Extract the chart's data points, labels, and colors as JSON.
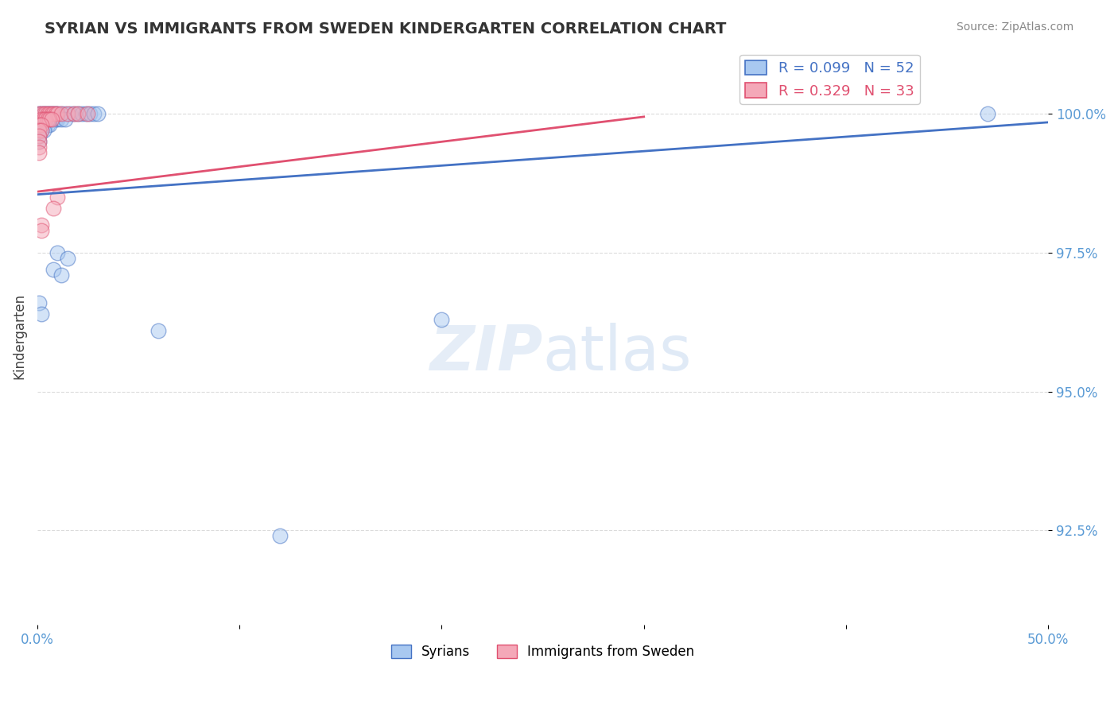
{
  "title": "SYRIAN VS IMMIGRANTS FROM SWEDEN KINDERGARTEN CORRELATION CHART",
  "source": "Source: ZipAtlas.com",
  "xlabel": "",
  "ylabel": "Kindergarten",
  "watermark": "ZIPatlas",
  "legend_blue": "R = 0.099   N = 52",
  "legend_pink": "R = 0.329   N = 33",
  "legend_label_blue": "Syrians",
  "legend_label_pink": "Immigrants from Sweden",
  "xlim": [
    0.0,
    0.5
  ],
  "ylim": [
    0.908,
    1.012
  ],
  "xticks": [
    0.0,
    0.1,
    0.2,
    0.3,
    0.4,
    0.5
  ],
  "xtick_labels": [
    "0.0%",
    "",
    "",
    "",
    "",
    "50.0%"
  ],
  "yticks": [
    0.925,
    0.95,
    0.975,
    1.0
  ],
  "ytick_labels": [
    "92.5%",
    "95.0%",
    "97.5%",
    "100.0%"
  ],
  "blue_color": "#A8C8F0",
  "pink_color": "#F4A8B8",
  "trend_blue": "#4472C4",
  "trend_pink": "#E05070",
  "title_color": "#333333",
  "axis_color": "#5B9BD5",
  "blue_scatter": [
    [
      0.001,
      1.0
    ],
    [
      0.002,
      1.0
    ],
    [
      0.003,
      1.0
    ],
    [
      0.004,
      1.0
    ],
    [
      0.005,
      1.0
    ],
    [
      0.006,
      1.0
    ],
    [
      0.007,
      1.0
    ],
    [
      0.008,
      1.0
    ],
    [
      0.009,
      1.0
    ],
    [
      0.01,
      1.0
    ],
    [
      0.012,
      1.0
    ],
    [
      0.014,
      1.0
    ],
    [
      0.016,
      1.0
    ],
    [
      0.018,
      1.0
    ],
    [
      0.02,
      1.0
    ],
    [
      0.022,
      1.0
    ],
    [
      0.024,
      1.0
    ],
    [
      0.026,
      1.0
    ],
    [
      0.028,
      1.0
    ],
    [
      0.03,
      1.0
    ],
    [
      0.002,
      0.999
    ],
    [
      0.003,
      0.999
    ],
    [
      0.004,
      0.999
    ],
    [
      0.005,
      0.999
    ],
    [
      0.006,
      0.999
    ],
    [
      0.007,
      0.999
    ],
    [
      0.008,
      0.999
    ],
    [
      0.009,
      0.999
    ],
    [
      0.01,
      0.999
    ],
    [
      0.012,
      0.999
    ],
    [
      0.014,
      0.999
    ],
    [
      0.001,
      0.998
    ],
    [
      0.002,
      0.998
    ],
    [
      0.003,
      0.998
    ],
    [
      0.004,
      0.998
    ],
    [
      0.005,
      0.998
    ],
    [
      0.006,
      0.998
    ],
    [
      0.001,
      0.997
    ],
    [
      0.002,
      0.997
    ],
    [
      0.003,
      0.997
    ],
    [
      0.001,
      0.996
    ],
    [
      0.001,
      0.995
    ],
    [
      0.01,
      0.975
    ],
    [
      0.015,
      0.974
    ],
    [
      0.008,
      0.972
    ],
    [
      0.012,
      0.971
    ],
    [
      0.001,
      0.966
    ],
    [
      0.002,
      0.964
    ],
    [
      0.06,
      0.961
    ],
    [
      0.2,
      0.963
    ],
    [
      0.12,
      0.924
    ],
    [
      0.47,
      1.0
    ]
  ],
  "pink_scatter": [
    [
      0.001,
      1.0
    ],
    [
      0.002,
      1.0
    ],
    [
      0.003,
      1.0
    ],
    [
      0.004,
      1.0
    ],
    [
      0.005,
      1.0
    ],
    [
      0.006,
      1.0
    ],
    [
      0.007,
      1.0
    ],
    [
      0.008,
      1.0
    ],
    [
      0.009,
      1.0
    ],
    [
      0.01,
      1.0
    ],
    [
      0.012,
      1.0
    ],
    [
      0.015,
      1.0
    ],
    [
      0.018,
      1.0
    ],
    [
      0.02,
      1.0
    ],
    [
      0.025,
      1.0
    ],
    [
      0.002,
      0.999
    ],
    [
      0.003,
      0.999
    ],
    [
      0.004,
      0.999
    ],
    [
      0.005,
      0.999
    ],
    [
      0.006,
      0.999
    ],
    [
      0.007,
      0.999
    ],
    [
      0.001,
      0.998
    ],
    [
      0.002,
      0.998
    ],
    [
      0.001,
      0.997
    ],
    [
      0.002,
      0.997
    ],
    [
      0.001,
      0.996
    ],
    [
      0.001,
      0.995
    ],
    [
      0.001,
      0.994
    ],
    [
      0.001,
      0.993
    ],
    [
      0.01,
      0.985
    ],
    [
      0.008,
      0.983
    ],
    [
      0.002,
      0.98
    ],
    [
      0.002,
      0.979
    ]
  ],
  "blue_trend_x": [
    0.0,
    0.5
  ],
  "blue_trend_y": [
    0.9855,
    0.9985
  ],
  "pink_trend_x": [
    0.0,
    0.3
  ],
  "pink_trend_y": [
    0.986,
    0.9995
  ]
}
